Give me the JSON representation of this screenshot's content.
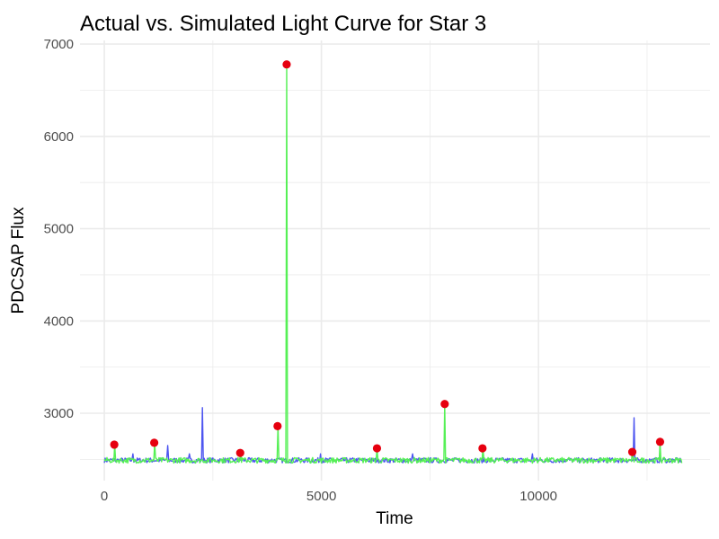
{
  "chart_data": {
    "type": "line",
    "title": "Actual vs. Simulated Light Curve for Star 3",
    "xlabel": "Time",
    "ylabel": "PDCSAP Flux",
    "xlim": [
      -560,
      13950
    ],
    "ylim": [
      2270,
      7040
    ],
    "x_ticks": [
      {
        "value": 0,
        "label": "0"
      },
      {
        "value": 5000,
        "label": "5000"
      },
      {
        "value": 10000,
        "label": "10000"
      }
    ],
    "y_ticks": [
      {
        "value": 3000,
        "label": "3000"
      },
      {
        "value": 4000,
        "label": "4000"
      },
      {
        "value": 5000,
        "label": "5000"
      },
      {
        "value": 6000,
        "label": "6000"
      },
      {
        "value": 7000,
        "label": "7000"
      }
    ],
    "grid": true,
    "baseline": 2490,
    "x_range": [
      0,
      13300
    ],
    "colors": {
      "actual": "#4d55f0",
      "simulated": "#55f055",
      "flares": "#e6000f",
      "grid": "#ebebeb"
    },
    "actual_spikes": [
      {
        "x": 660,
        "y": 2560
      },
      {
        "x": 1460,
        "y": 2650
      },
      {
        "x": 1950,
        "y": 2560
      },
      {
        "x": 2260,
        "y": 3060
      },
      {
        "x": 4980,
        "y": 2560
      },
      {
        "x": 7100,
        "y": 2560
      },
      {
        "x": 9850,
        "y": 2560
      },
      {
        "x": 12200,
        "y": 2950
      }
    ],
    "simulated_flares": [
      {
        "x": 230,
        "y": 2660
      },
      {
        "x": 1150,
        "y": 2680
      },
      {
        "x": 3130,
        "y": 2570
      },
      {
        "x": 3990,
        "y": 2860
      },
      {
        "x": 4200,
        "y": 6780
      },
      {
        "x": 6280,
        "y": 2620
      },
      {
        "x": 7840,
        "y": 3100
      },
      {
        "x": 8710,
        "y": 2620
      },
      {
        "x": 12160,
        "y": 2580
      },
      {
        "x": 12800,
        "y": 2690
      }
    ]
  }
}
